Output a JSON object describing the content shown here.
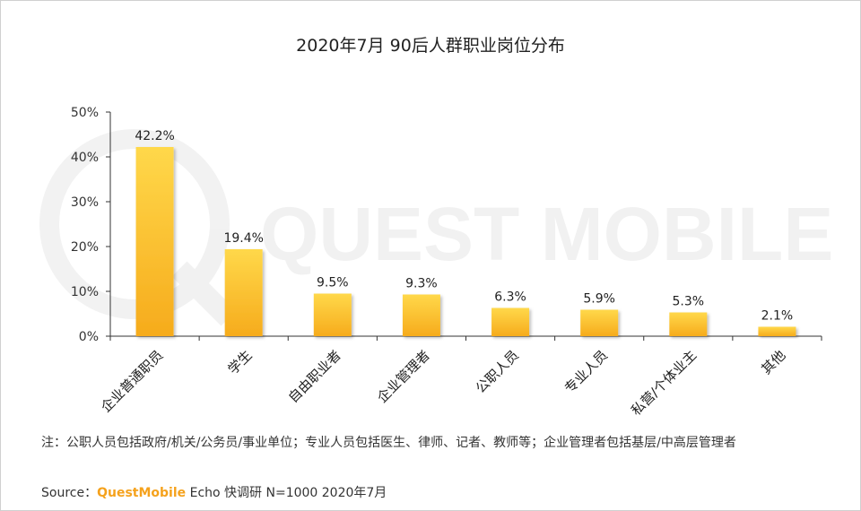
{
  "title": "2020年7月 90后人群职业岗位分布",
  "watermark_text": "QUEST MOBILE",
  "chart_data": {
    "type": "bar",
    "categories": [
      "企业普通职员",
      "学生",
      "自由职业者",
      "企业管理者",
      "公职人员",
      "专业人员",
      "私营/个体业主",
      "其他"
    ],
    "values": [
      42.2,
      19.4,
      9.5,
      9.3,
      6.3,
      5.9,
      5.3,
      2.1
    ],
    "value_labels": [
      "42.2%",
      "19.4%",
      "9.5%",
      "9.3%",
      "6.3%",
      "5.9%",
      "5.3%",
      "2.1%"
    ],
    "ylim": [
      0,
      50
    ],
    "y_ticks": [
      0,
      10,
      20,
      30,
      40,
      50
    ],
    "y_tick_labels": [
      "0%",
      "10%",
      "20%",
      "30%",
      "40%",
      "50%"
    ],
    "bar_color_top": "#ffd84a",
    "bar_color_bottom": "#f6ab1c",
    "grid": false
  },
  "note": "注：公职人员包括政府/机关/公务员/事业单位；专业人员包括医生、律师、记者、教师等；企业管理者包括基层/中高层管理者",
  "source": {
    "prefix": "Source：",
    "brand": "QuestMobile",
    "suffix": " Echo 快调研 N=1000 2020年7月"
  }
}
